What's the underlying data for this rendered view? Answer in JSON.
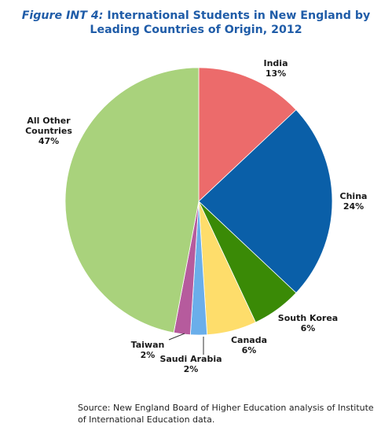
{
  "title": {
    "prefix": "Figure INT 4:",
    "line1": "International Students in New England by",
    "line2": "Leading Countries of Origin, 2012"
  },
  "chart_data": {
    "type": "pie",
    "start": "12 o'clock",
    "direction": "clockwise",
    "slices": [
      {
        "name": "India",
        "label_lines": [
          "India"
        ],
        "value": 13,
        "value_label": "13%",
        "color": "#ec6b6b"
      },
      {
        "name": "China",
        "label_lines": [
          "China"
        ],
        "value": 24,
        "value_label": "24%",
        "color": "#0a5fa8"
      },
      {
        "name": "South Korea",
        "label_lines": [
          "South Korea"
        ],
        "value": 6,
        "value_label": "6%",
        "color": "#3a8a06"
      },
      {
        "name": "Canada",
        "label_lines": [
          "Canada"
        ],
        "value": 6,
        "value_label": "6%",
        "color": "#fedd6b"
      },
      {
        "name": "Saudi Arabia",
        "label_lines": [
          "Saudi Arabia"
        ],
        "value": 2,
        "value_label": "2%",
        "color": "#6aaeea"
      },
      {
        "name": "Taiwan",
        "label_lines": [
          "Taiwan"
        ],
        "value": 2,
        "value_label": "2%",
        "color": "#b65b9d"
      },
      {
        "name": "All Other Countries",
        "label_lines": [
          "All Other",
          "Countries"
        ],
        "value": 47,
        "value_label": "47%",
        "color": "#a9d27c"
      }
    ]
  },
  "source": "Source: New England Board of Higher Education analysis of Institute of International Education data."
}
